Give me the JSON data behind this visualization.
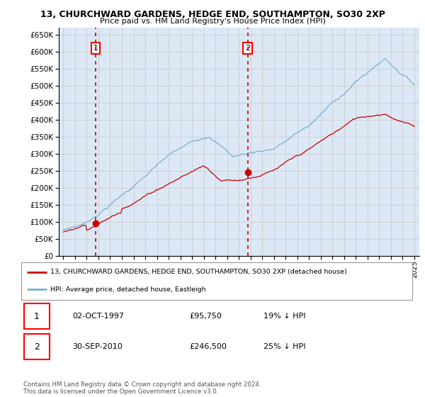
{
  "title": "13, CHURCHWARD GARDENS, HEDGE END, SOUTHAMPTON, SO30 2XP",
  "subtitle": "Price paid vs. HM Land Registry's House Price Index (HPI)",
  "ylim": [
    0,
    670000
  ],
  "yticks": [
    0,
    50000,
    100000,
    150000,
    200000,
    250000,
    300000,
    350000,
    400000,
    450000,
    500000,
    550000,
    600000,
    650000
  ],
  "sale1_price": 95750,
  "sale1_x": 1997.75,
  "sale2_price": 246500,
  "sale2_x": 2010.75,
  "legend_line1": "13, CHURCHWARD GARDENS, HEDGE END, SOUTHAMPTON, SO30 2XP (detached house)",
  "legend_line2": "HPI: Average price, detached house, Eastleigh",
  "table_row1": [
    "1",
    "02-OCT-1997",
    "£95,750",
    "19% ↓ HPI"
  ],
  "table_row2": [
    "2",
    "30-SEP-2010",
    "£246,500",
    "25% ↓ HPI"
  ],
  "footer": "Contains HM Land Registry data © Crown copyright and database right 2024.\nThis data is licensed under the Open Government Licence v3.0.",
  "red_color": "#cc0000",
  "blue_color": "#7bafd4",
  "dashed_color": "#cc0000",
  "grid_color": "#cccccc",
  "chart_bg": "#dce8f5",
  "background_color": "#ffffff"
}
